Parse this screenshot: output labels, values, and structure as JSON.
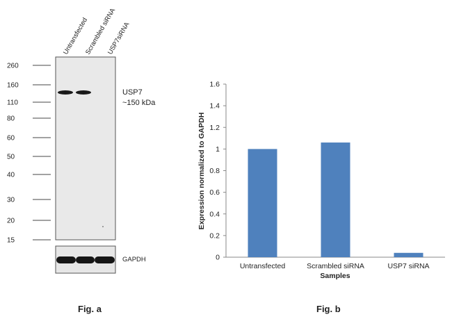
{
  "figure_a": {
    "lanes": [
      "Untransfected",
      "Scrambled siRNA",
      "USP7siRNA"
    ],
    "markers": [
      "260",
      "160",
      "110",
      "80",
      "60",
      "50",
      "40",
      "30",
      "20",
      "15"
    ],
    "protein_label": "USP7",
    "protein_size": "~150 kDa",
    "control_label": "GAPDH",
    "caption": "Fig. a"
  },
  "chart_data": {
    "type": "bar",
    "categories": [
      "Untransfected",
      "Scrambled siRNA",
      "USP7 siRNA"
    ],
    "values": [
      1.0,
      1.06,
      0.04
    ],
    "xlabel": "Samples",
    "ylabel": "Expression normalized to GAPDH",
    "ylim": [
      0,
      1.6
    ],
    "yticks": [
      "0",
      "0.2",
      "0.4",
      "0.6",
      "0.8",
      "1",
      "1.2",
      "1.4",
      "1.6"
    ],
    "bar_color": "#4f81bd",
    "grid": false,
    "caption": "Fig. b"
  }
}
